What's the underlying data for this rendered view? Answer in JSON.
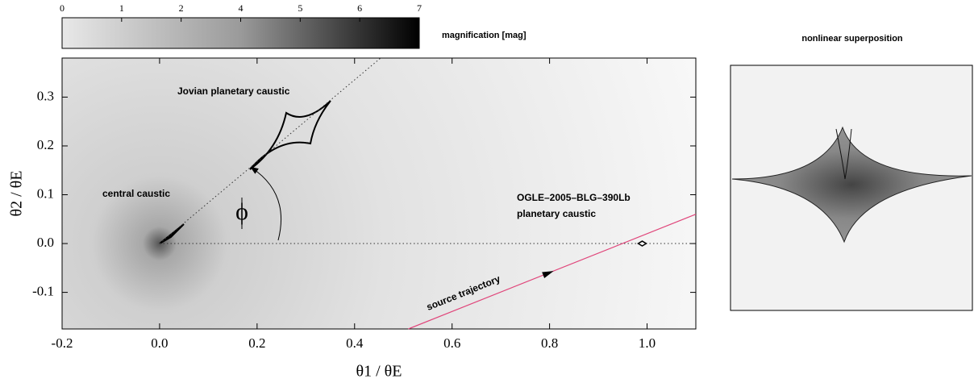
{
  "chart_data": [
    {
      "type": "caustic-map",
      "colorbar_label": "magnification [mag]",
      "cticks": [
        0,
        1,
        2,
        4,
        5,
        6,
        7
      ],
      "xlabel": "θ1 / θE",
      "ylabel": "θ2 / θE",
      "xlim": [
        -0.2,
        1.1
      ],
      "ylim": [
        -0.175,
        0.38
      ],
      "xticks": [
        -0.2,
        {
          "value": 0,
          "label": "0.0"
        },
        0.2,
        0.4,
        0.6,
        0.8,
        {
          "value": 1,
          "label": "1.0"
        }
      ],
      "yticks": [
        -0.1,
        {
          "value": 0,
          "label": "0.0"
        },
        0.1,
        0.2,
        0.3
      ],
      "annotations": [
        "Jovian planetary caustic",
        "central caustic",
        "OGLE–2005–BLG–390Lb",
        "planetary caustic",
        "source trajectory",
        "ϕ"
      ],
      "source_trajectory": {
        "x": [
          0.51,
          1.1
        ],
        "y": [
          -0.175,
          0.06
        ],
        "color": "#e0457a"
      },
      "planet_caustic": {
        "x": 0.99,
        "y": 0
      }
    },
    {
      "type": "image",
      "title": "nonlinear superposition"
    }
  ]
}
